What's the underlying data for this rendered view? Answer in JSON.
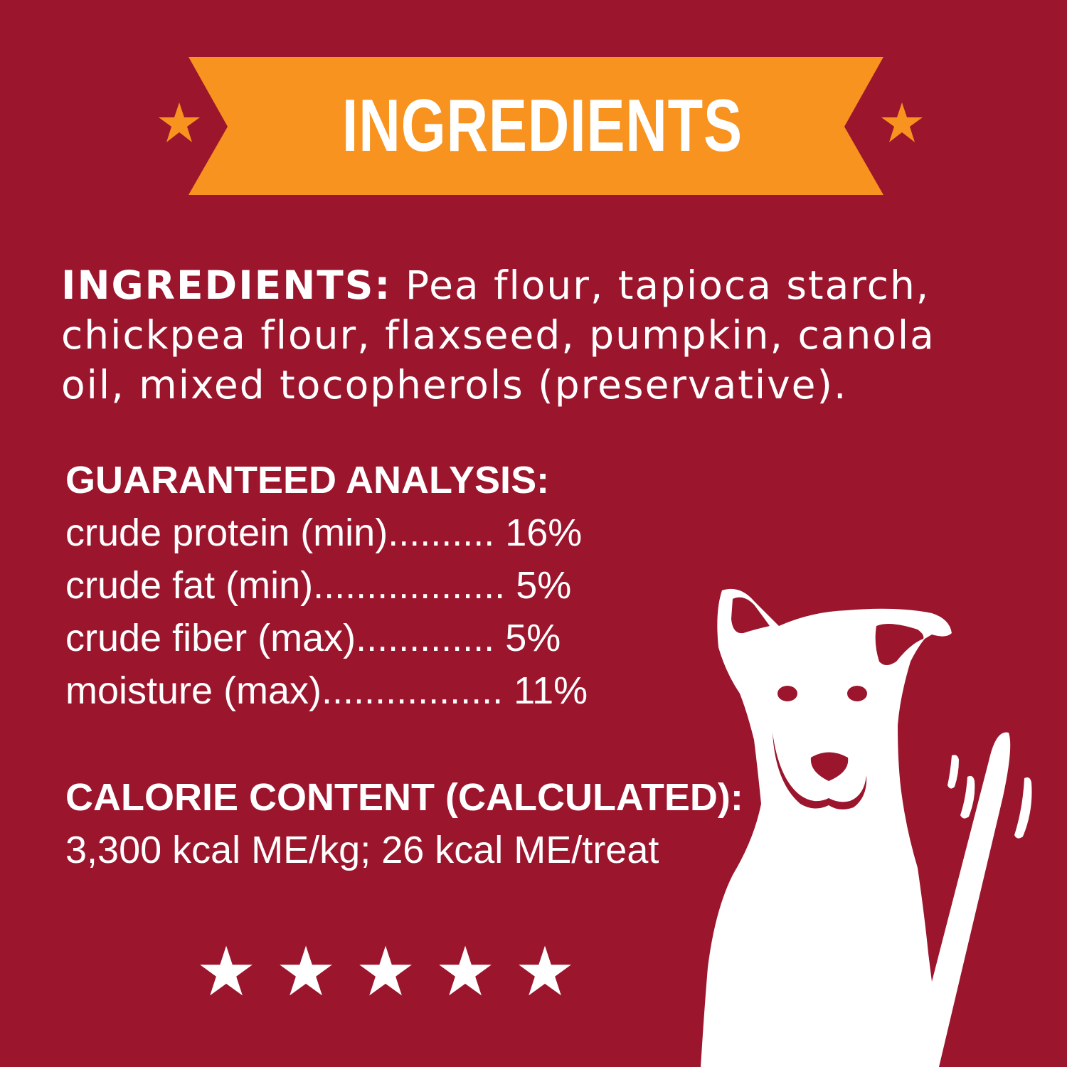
{
  "banner": {
    "title": "INGREDIENTS",
    "color": "#f7931e",
    "star_icon": "star-icon"
  },
  "ingredients": {
    "label": "INGREDIENTS:",
    "text": " Pea flour, tapioca starch, chickpea flour, flaxseed, pumpkin, canola oil, mixed tocopherols (preservative)."
  },
  "analysis": {
    "heading": "GUARANTEED ANALYSIS:",
    "rows": [
      {
        "name": "crude protein (min)",
        "dots": "..........",
        "value": "16%"
      },
      {
        "name": "crude fat (min)",
        "dots": "..................",
        "value": "5%"
      },
      {
        "name": "crude fiber (max)",
        "dots": ".............",
        "value": "5%"
      },
      {
        "name": "moisture (max)",
        "dots": ".................",
        "value": "11%"
      }
    ]
  },
  "calorie": {
    "heading": "CALORIE CONTENT (CALCULATED):",
    "value": "3,300 kcal ME/kg; 26 kcal ME/treat"
  },
  "rating": {
    "stars": 5,
    "star_glyph": "★"
  },
  "colors": {
    "background": "#9b152d",
    "accent": "#f7931e",
    "text": "#ffffff"
  }
}
